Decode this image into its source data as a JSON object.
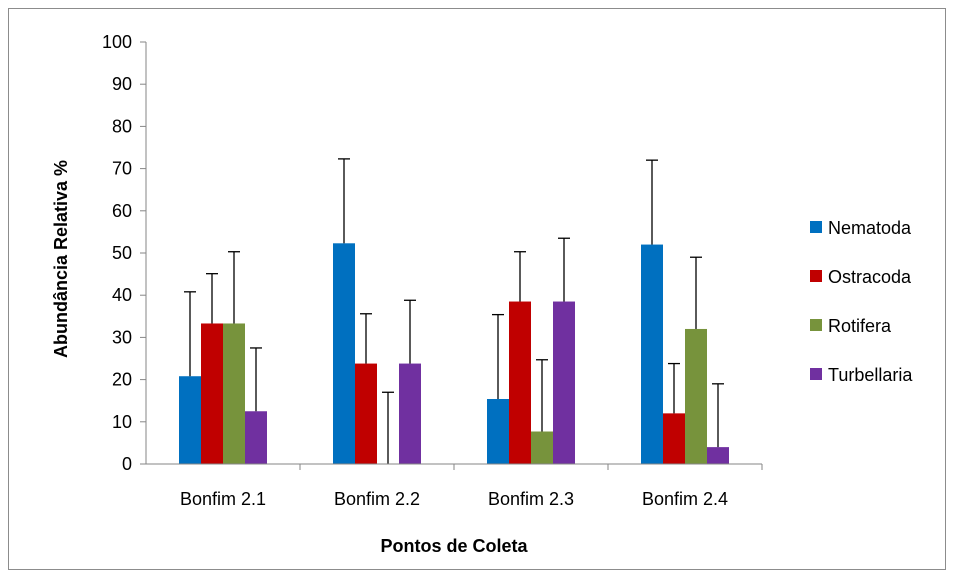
{
  "chart_data": {
    "type": "bar",
    "title": "",
    "xlabel": "Pontos de Coleta",
    "ylabel": "Abundância Relativa %",
    "ylim": [
      0,
      100
    ],
    "yticks": [
      "0",
      "10",
      "20",
      "30",
      "40",
      "50",
      "60",
      "70",
      "80",
      "90",
      "100"
    ],
    "categories": [
      "Bonfim 2.1",
      "Bonfim 2.2",
      "Bonfim 2.3",
      "Bonfim 2.4"
    ],
    "grid": false,
    "legend_position": "right",
    "series": [
      {
        "name": "Nematoda",
        "color": "#0070c0",
        "values": [
          20.8,
          52.3,
          15.4,
          52.0
        ],
        "error": [
          20.0,
          20.0,
          20.0,
          20.0
        ]
      },
      {
        "name": "Ostracoda",
        "color": "#c00000",
        "values": [
          33.3,
          23.8,
          38.5,
          12.0
        ],
        "error": [
          11.8,
          11.8,
          11.8,
          11.8
        ]
      },
      {
        "name": "Rotifera",
        "color": "#77933c",
        "values": [
          33.3,
          0,
          7.7,
          32.0
        ],
        "error": [
          17.0,
          17.0,
          17.0,
          17.0
        ]
      },
      {
        "name": "Turbellaria",
        "color": "#7030a0",
        "values": [
          12.5,
          23.8,
          38.5,
          4.0
        ],
        "error": [
          15.0,
          15.0,
          15.0,
          15.0
        ]
      }
    ]
  }
}
